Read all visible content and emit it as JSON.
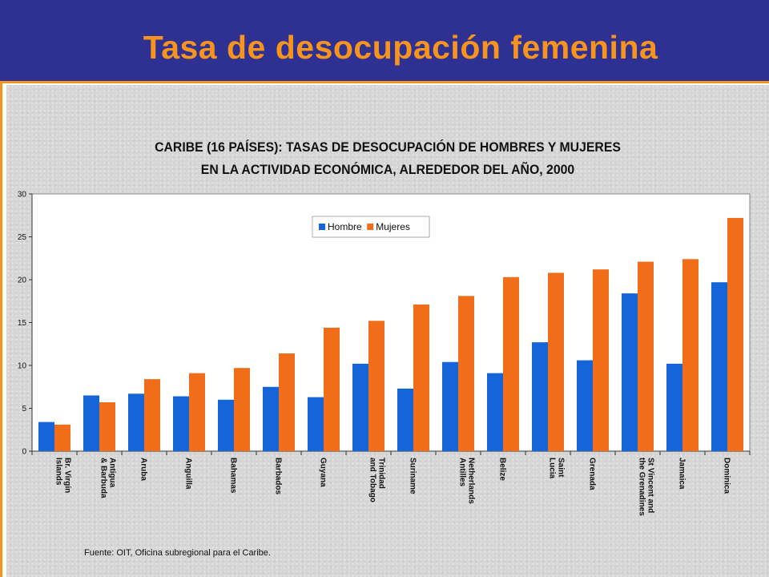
{
  "slide": {
    "title": "Tasa de desocupación femenina",
    "colors": {
      "header_bg": "#2e3192",
      "title_color": "#f7941d",
      "accent_rule": "#f7941d",
      "panel_bg": "#d6d6d6"
    }
  },
  "chart_data": {
    "type": "bar",
    "title_lines": [
      "CARIBE (16 PAÍSES):   TASAS DE DESOCUPACIÓN DE HOMBRES Y MUJERES",
      "EN LA ACTIVIDAD ECONÓMICA, ALREDEDOR DEL AÑO, 2000"
    ],
    "categories": [
      "Br. Virgin Islands",
      "Antigua & Barbuda",
      "Aruba",
      "Anguilla",
      "Bahamas",
      "Barbados",
      "Guyana",
      "Trinidad and Tobago",
      "Suriname",
      "Netherlands Antilles",
      "Belize",
      "Saint Lucia",
      "Grenada",
      "St Vincent and the Grenadines",
      "Jamaica",
      "Dominica"
    ],
    "series": [
      {
        "name": "Hombre",
        "color": "#1565d8",
        "values": [
          3.4,
          6.5,
          6.7,
          6.4,
          6.0,
          7.5,
          6.3,
          10.2,
          7.3,
          10.4,
          9.1,
          12.7,
          10.6,
          18.4,
          10.2,
          19.7
        ]
      },
      {
        "name": "Mujeres",
        "color": "#f26d1a",
        "values": [
          3.1,
          5.7,
          8.4,
          9.1,
          9.7,
          11.4,
          14.4,
          15.2,
          17.1,
          18.1,
          20.3,
          20.8,
          21.2,
          22.1,
          22.4,
          27.2
        ]
      }
    ],
    "ylim": [
      0,
      30
    ],
    "yticks": [
      0,
      5,
      10,
      15,
      20,
      25,
      30
    ],
    "grid": false,
    "legend_position": "top-center",
    "source": "Fuente: OIT, Oficina subregional para el Caribe."
  }
}
